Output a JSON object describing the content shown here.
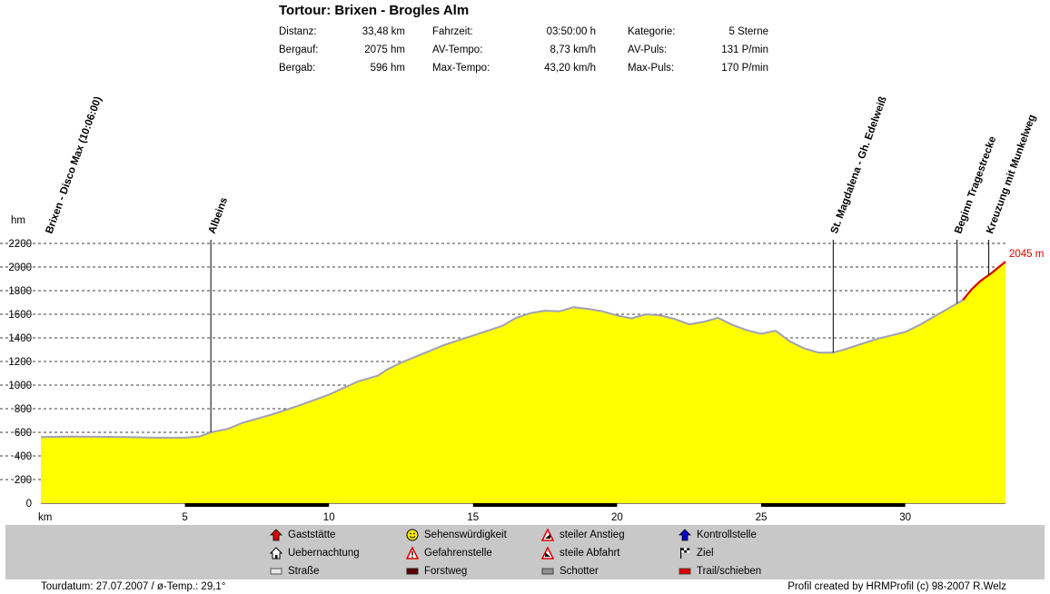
{
  "title": "Tortour: Brixen - Brogles Alm",
  "stats": [
    {
      "label": "Distanz:",
      "value": "33,48 km"
    },
    {
      "label": "Bergauf:",
      "value": "2075 hm"
    },
    {
      "label": "Bergab:",
      "value": "596 hm"
    },
    {
      "label": "Fahrzeit:",
      "value": "03:50:00 h"
    },
    {
      "label": "AV-Tempo:",
      "value": "8,73 km/h"
    },
    {
      "label": "Max-Tempo:",
      "value": "43,20 km/h"
    },
    {
      "label": "Kategorie:",
      "value": "5 Sterne"
    },
    {
      "label": "AV-Puls:",
      "value": "131 P/min"
    },
    {
      "label": "Max-Puls:",
      "value": "170 P/min"
    }
  ],
  "chart_data": {
    "type": "area",
    "ylabel": "hm",
    "xlabel": "km",
    "ylim": [
      0,
      2200
    ],
    "xlim": [
      0,
      33.48
    ],
    "yticks": [
      0,
      200,
      400,
      600,
      800,
      1000,
      1200,
      1400,
      1600,
      1800,
      2000,
      2200
    ],
    "xticks": [
      5,
      10,
      15,
      20,
      25,
      30
    ],
    "grid": "horizontal dashed",
    "fill_color": "#ffff00",
    "outline_color": "#a0a0b8",
    "trail_color": "#dd0000",
    "profile": [
      [
        0,
        560
      ],
      [
        1,
        565
      ],
      [
        2,
        562
      ],
      [
        3,
        560
      ],
      [
        4,
        555
      ],
      [
        5,
        555
      ],
      [
        5.5,
        565
      ],
      [
        5.9,
        600
      ],
      [
        6.5,
        630
      ],
      [
        7,
        680
      ],
      [
        8,
        750
      ],
      [
        9,
        830
      ],
      [
        10,
        920
      ],
      [
        11,
        1030
      ],
      [
        11.7,
        1080
      ],
      [
        12,
        1130
      ],
      [
        12.5,
        1190
      ],
      [
        13,
        1240
      ],
      [
        13.5,
        1290
      ],
      [
        14,
        1340
      ],
      [
        14.5,
        1380
      ],
      [
        15,
        1420
      ],
      [
        16,
        1500
      ],
      [
        16.5,
        1570
      ],
      [
        17,
        1610
      ],
      [
        17.5,
        1630
      ],
      [
        18,
        1625
      ],
      [
        18.5,
        1660
      ],
      [
        19,
        1645
      ],
      [
        19.5,
        1625
      ],
      [
        20,
        1590
      ],
      [
        20.5,
        1565
      ],
      [
        21,
        1600
      ],
      [
        21.5,
        1590
      ],
      [
        22,
        1560
      ],
      [
        22.5,
        1515
      ],
      [
        23,
        1535
      ],
      [
        23.5,
        1570
      ],
      [
        24,
        1510
      ],
      [
        24.5,
        1465
      ],
      [
        25,
        1435
      ],
      [
        25.5,
        1460
      ],
      [
        26,
        1370
      ],
      [
        26.5,
        1310
      ],
      [
        27,
        1275
      ],
      [
        27.5,
        1275
      ],
      [
        28,
        1310
      ],
      [
        28.5,
        1350
      ],
      [
        29,
        1390
      ],
      [
        30,
        1450
      ],
      [
        30.5,
        1510
      ],
      [
        31,
        1580
      ],
      [
        31.5,
        1650
      ],
      [
        32,
        1720
      ],
      [
        32.3,
        1810
      ],
      [
        32.6,
        1880
      ],
      [
        33,
        1950
      ],
      [
        33.48,
        2045
      ]
    ],
    "trail_from_km": 31.8,
    "markers": [
      {
        "km": 0,
        "label": "Brixen - Disco Max (10:06:00)",
        "line": false
      },
      {
        "km": 5.9,
        "label": "Albeins",
        "line": true
      },
      {
        "km": 27.5,
        "label": "St. Magdalena - Gh. Edelweiß",
        "line": true
      },
      {
        "km": 31.8,
        "label": "Beginn Tragestrecke",
        "line": true
      },
      {
        "km": 32.9,
        "label": "Kreuzung mit Munkelweg",
        "line": true
      }
    ],
    "end_label": "2045 m",
    "surface_segments": [
      {
        "from": 5,
        "to": 10,
        "color": "#000000"
      },
      {
        "from": 15,
        "to": 20,
        "color": "#000000"
      },
      {
        "from": 25,
        "to": 30,
        "color": "#000000"
      }
    ]
  },
  "legend": [
    {
      "label": "Gaststätte",
      "icon": "restaurant-icon",
      "color": "#dd0000"
    },
    {
      "label": "Uebernachtung",
      "icon": "house-icon",
      "color": "#ffffff"
    },
    {
      "label": "Straße",
      "icon": "road-icon",
      "color": "#e8e8e8"
    },
    {
      "label": "Sehenswürdigkeit",
      "icon": "smiley-icon",
      "color": "#ffee00"
    },
    {
      "label": "Gefahrenstelle",
      "icon": "warning-icon",
      "color": "#dd0000"
    },
    {
      "label": "Forstweg",
      "icon": "forest-road-icon",
      "color": "#5a0000"
    },
    {
      "label": "steiler Anstieg",
      "icon": "steep-climb-icon",
      "color": "#dd0000"
    },
    {
      "label": "steile Abfahrt",
      "icon": "steep-descent-icon",
      "color": "#dd0000"
    },
    {
      "label": "Schotter",
      "icon": "gravel-icon",
      "color": "#909090"
    },
    {
      "label": "Kontrollstelle",
      "icon": "checkpoint-icon",
      "color": "#0000cc"
    },
    {
      "label": "Ziel",
      "icon": "finish-flag-icon",
      "color": "#000000"
    },
    {
      "label": "Trail/schieben",
      "icon": "trail-icon",
      "color": "#dd0000"
    }
  ],
  "footer": {
    "left": "Tourdatum: 27.07.2007  /  ø-Temp.: 29,1°",
    "right": "Profil created by HRMProfil (c) 98-2007 R.Welz"
  }
}
